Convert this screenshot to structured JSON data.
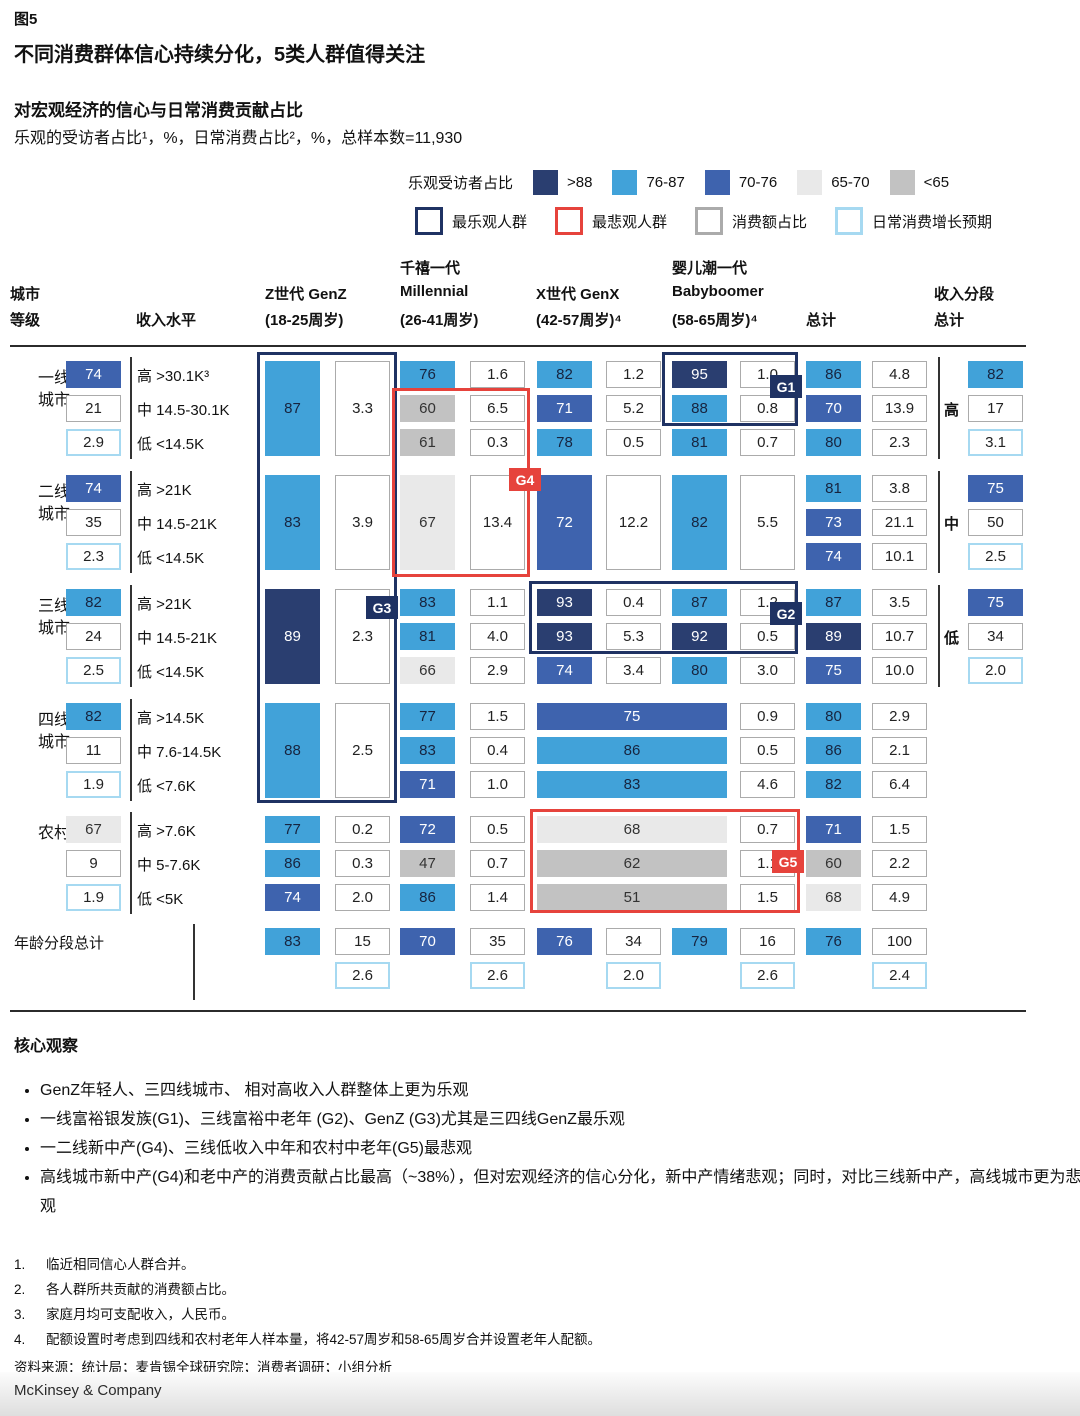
{
  "meta": {
    "figure_label": "图5",
    "title": "不同消费群体信心持续分化，5类人群值得关注",
    "subtitle": "对宏观经济的信心与日常消费贡献占比",
    "measure_line": "乐观的受访者占比¹，%，日常消费占比²，%，总样本数=11,930"
  },
  "legend": {
    "scale_label": "乐观受访者占比",
    "bins": [
      {
        "range": ">88",
        "key": "navy",
        "color": "#2a3e70"
      },
      {
        "range": "76-87",
        "key": "cyan",
        "color": "#41a2d9"
      },
      {
        "range": "70-76",
        "key": "blue",
        "color": "#3e63ae"
      },
      {
        "range": "65-70",
        "key": "lg",
        "color": "#e9e9e9"
      },
      {
        "range": "<65",
        "key": "gray",
        "color": "#c2c2c2"
      }
    ],
    "outlines": [
      {
        "label": "最乐观人群",
        "key": "optimistic",
        "color": "#1f3263"
      },
      {
        "label": "最悲观人群",
        "key": "pessimistic",
        "color": "#e6433c"
      },
      {
        "label": "消费额占比",
        "key": "share",
        "color": "#ababab"
      },
      {
        "label": "日常消费增长预期",
        "key": "growth",
        "color": "#a6d9f1"
      }
    ]
  },
  "columns": {
    "city": [
      "城市",
      "等级"
    ],
    "income": "收入水平",
    "genz": [
      "Z世代 GenZ",
      "(18-25周岁)"
    ],
    "mill": [
      "千禧一代",
      "Millennial",
      "(26-41周岁)"
    ],
    "genx": [
      "X世代 GenX",
      "(42-57周岁)⁴"
    ],
    "bb": [
      "婴儿潮一代",
      "Babyboomer",
      "(58-65周岁)⁴"
    ],
    "total": "总计",
    "segment": [
      "收入分段",
      "总计"
    ]
  },
  "chart_data": {
    "type": "heatmap",
    "title": "对宏观经济的信心与日常消费贡献占比",
    "sample_size": "11,930",
    "groups": [
      {
        "city": [
          "一线",
          "城市"
        ],
        "summary": {
          "optimism": 74,
          "share": 21,
          "growth": "2.9"
        },
        "incomes": [
          "高 >30.1K³",
          "中 14.5-30.1K",
          "低 <14.5K"
        ],
        "genz": {
          "merged": true,
          "v": 87,
          "c": "3.3"
        },
        "mill": {
          "rows": [
            [
              76,
              "1.6"
            ],
            [
              60,
              "6.5"
            ],
            [
              61,
              "0.3"
            ]
          ]
        },
        "genx": {
          "rows": [
            [
              82,
              "1.2"
            ],
            [
              71,
              "5.2"
            ],
            [
              78,
              "0.5"
            ]
          ]
        },
        "bb": {
          "rows": [
            [
              95,
              "1.0"
            ],
            [
              88,
              "0.8"
            ],
            [
              81,
              "0.7"
            ]
          ]
        },
        "total": {
          "rows": [
            [
              86,
              "4.8"
            ],
            [
              70,
              "13.9"
            ],
            [
              80,
              "2.3"
            ]
          ]
        },
        "segment": {
          "label": "高",
          "optimism": 82,
          "share": 17,
          "growth": "3.1"
        }
      },
      {
        "city": [
          "二线",
          "城市"
        ],
        "summary": {
          "optimism": 74,
          "share": 35,
          "growth": "2.3"
        },
        "incomes": [
          "高 >21K",
          "中 14.5-21K",
          "低 <14.5K"
        ],
        "genz": {
          "merged": true,
          "v": 83,
          "c": "3.9"
        },
        "mill": {
          "merged": true,
          "v": 67,
          "c": "13.4"
        },
        "genx": {
          "merged": true,
          "v": 72,
          "c": "12.2"
        },
        "bb": {
          "merged": true,
          "v": 82,
          "c": "5.5"
        },
        "total": {
          "rows": [
            [
              81,
              "3.8"
            ],
            [
              73,
              "21.1"
            ],
            [
              74,
              "10.1"
            ]
          ]
        },
        "segment": {
          "label": "中",
          "optimism": 75,
          "share": 50,
          "growth": "2.5"
        }
      },
      {
        "city": [
          "三线",
          "城市"
        ],
        "summary": {
          "optimism": 82,
          "share": 24,
          "growth": "2.5"
        },
        "incomes": [
          "高 >21K",
          "中 14.5-21K",
          "低 <14.5K"
        ],
        "genz": {
          "merged": true,
          "v": 89,
          "c": "2.3"
        },
        "mill": {
          "rows": [
            [
              83,
              "1.1"
            ],
            [
              81,
              "4.0"
            ],
            [
              66,
              "2.9"
            ]
          ]
        },
        "genx": {
          "rows": [
            [
              93,
              "0.4"
            ],
            [
              93,
              "5.3"
            ],
            [
              74,
              "3.4"
            ]
          ]
        },
        "bb": {
          "rows": [
            [
              87,
              "1.2"
            ],
            [
              92,
              "0.5"
            ],
            [
              80,
              "3.0"
            ]
          ]
        },
        "total": {
          "rows": [
            [
              87,
              "3.5"
            ],
            [
              89,
              "10.7"
            ],
            [
              75,
              "10.0"
            ]
          ]
        },
        "segment": {
          "label": "低",
          "optimism": 75,
          "share": 34,
          "growth": "2.0"
        }
      },
      {
        "city": [
          "四线",
          "城市"
        ],
        "summary": {
          "optimism": 82,
          "share": 11,
          "growth": "1.9"
        },
        "incomes": [
          "高 >14.5K",
          "中 7.6-14.5K",
          "低 <7.6K"
        ],
        "genz": {
          "merged": true,
          "v": 88,
          "c": "2.5"
        },
        "mill": {
          "rows": [
            [
              77,
              "1.5"
            ],
            [
              83,
              "0.4"
            ],
            [
              71,
              "1.0"
            ]
          ]
        },
        "elder_wide": {
          "rows": [
            [
              75,
              "0.9"
            ],
            [
              86,
              "0.5"
            ],
            [
              83,
              "4.6"
            ]
          ]
        },
        "total": {
          "rows": [
            [
              80,
              "2.9"
            ],
            [
              86,
              "2.1"
            ],
            [
              82,
              "6.4"
            ]
          ]
        }
      },
      {
        "city": [
          "农村"
        ],
        "summary": {
          "optimism": 67,
          "share": 9,
          "growth": "1.9"
        },
        "incomes": [
          "高 >7.6K",
          "中 5-7.6K",
          "低 <5K"
        ],
        "genz": {
          "rows": [
            [
              77,
              "0.2"
            ],
            [
              86,
              "0.3"
            ],
            [
              74,
              "2.0"
            ]
          ]
        },
        "mill": {
          "rows": [
            [
              72,
              "0.5"
            ],
            [
              47,
              "0.7"
            ],
            [
              86,
              "1.4"
            ]
          ]
        },
        "elder_wide": {
          "rows": [
            [
              68,
              "0.7"
            ],
            [
              62,
              "1.1"
            ],
            [
              51,
              "1.5"
            ]
          ]
        },
        "total": {
          "rows": [
            [
              71,
              "1.5"
            ],
            [
              60,
              "2.2"
            ],
            [
              68,
              "4.9"
            ]
          ]
        }
      }
    ],
    "age_totals": {
      "label": "年龄分段总计",
      "cells": [
        {
          "col": "genz",
          "v": 83,
          "share": 15,
          "growth": "2.6"
        },
        {
          "col": "mill",
          "v": 70,
          "share": 35,
          "growth": "2.6"
        },
        {
          "col": "genx",
          "v": 76,
          "share": 34,
          "growth": "2.0",
          "tone": "blue"
        },
        {
          "col": "bb",
          "v": 79,
          "share": 16,
          "growth": "2.6"
        },
        {
          "col": "total",
          "v": 76,
          "share": 100,
          "growth": "2.4"
        }
      ]
    },
    "highlight_boxes": [
      {
        "id": "G1",
        "style": "optimistic"
      },
      {
        "id": "G2",
        "style": "optimistic"
      },
      {
        "id": "G3",
        "style": "optimistic"
      },
      {
        "id": "G4",
        "style": "pessimistic"
      },
      {
        "id": "G5",
        "style": "pessimistic"
      }
    ]
  },
  "observations": {
    "heading": "核心观察",
    "bullets": [
      "GenZ年轻人、三四线城市、 相对高收入人群整体上更为乐观",
      "一线富裕银发族(G1)、三线富裕中老年 (G2)、GenZ (G3)尤其是三四线GenZ最乐观",
      "一二线新中产(G4)、三线低收入中年和农村中老年(G5)最悲观",
      "高线城市新中产(G4)和老中产的消费贡献占比最高（~38%），但对宏观经济的信心分化，新中产情绪悲观；同时，对比三线新中产，高线城市更为悲观"
    ]
  },
  "footnotes": [
    "临近相同信心人群合并。",
    "各人群所共贡献的消费额占比。",
    "家庭月均可支配收入，人民币。",
    "配额设置时考虑到四线和农村老年人样本量，将42-57周岁和58-65周岁合并设置老年人配额。"
  ],
  "source": "资料来源：统计局；麦肯锡全球研究院；消费者调研；小组分析",
  "brand": "McKinsey & Company"
}
